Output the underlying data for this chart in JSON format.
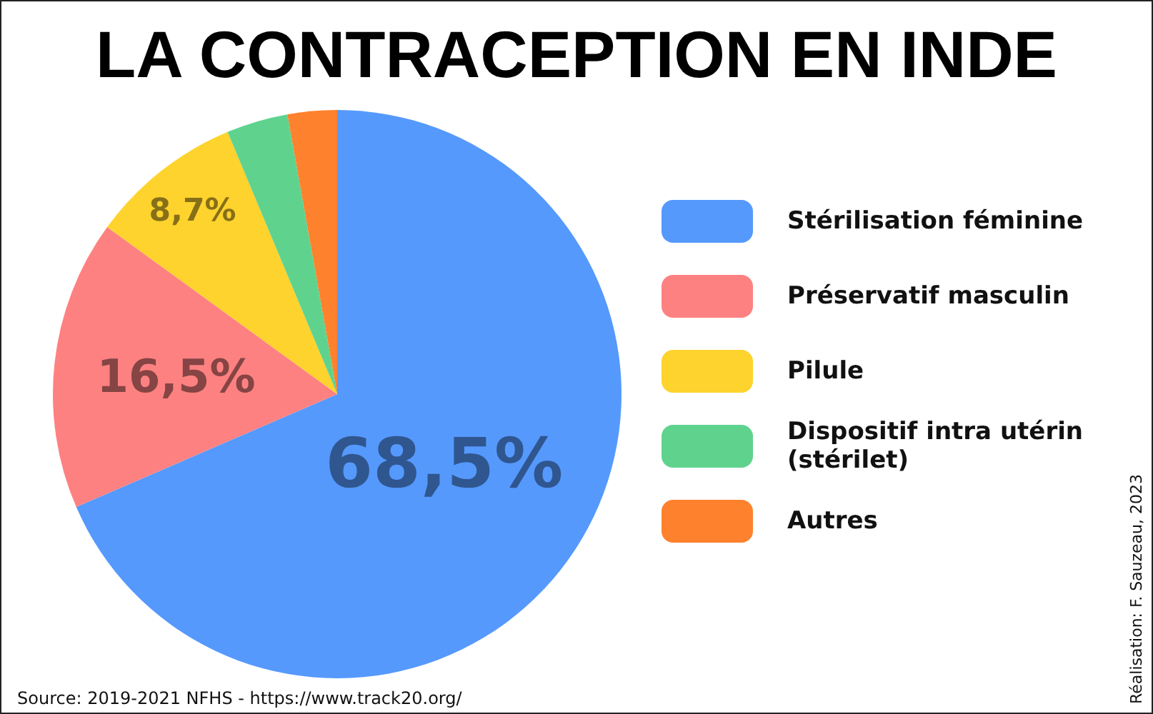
{
  "chart_data": {
    "type": "pie",
    "title": "LA CONTRACEPTION EN INDE",
    "categories": [
      "Stérilisation féminine",
      "Préservatif masculin",
      "Pilule",
      "Dispositif intra utérin (stérilet)",
      "Autres"
    ],
    "values": [
      68.5,
      16.5,
      8.7,
      3.5,
      2.8
    ],
    "colors": [
      "#5599fd",
      "#fe8181",
      "#fed32d",
      "#5fd38e",
      "#fe812d"
    ],
    "value_labels": [
      "68,5%",
      "16,5%",
      "8,7%",
      null,
      null
    ],
    "legend": "right",
    "annotations": [
      "Source: 2019-2021 NFHS - https://www.track20.org/",
      "Réalisation: F. Sauzeau, 2023"
    ]
  }
}
